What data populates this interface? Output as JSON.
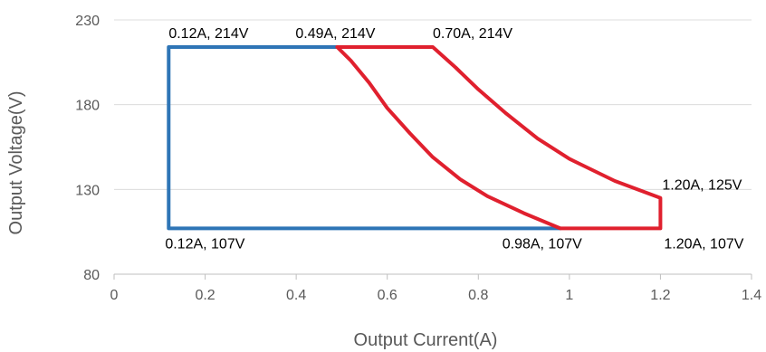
{
  "chart_data": {
    "type": "line",
    "xlabel": "Output Current(A)",
    "ylabel": "Output Voltage(V)",
    "xlim": [
      0,
      1.4
    ],
    "ylim": [
      80,
      230
    ],
    "xticks": [
      "0",
      "0.2",
      "0.4",
      "0.6",
      "0.8",
      "1",
      "1.2",
      "1.4"
    ],
    "yticks": [
      "80",
      "130",
      "180",
      "230"
    ],
    "grid": true,
    "series": [
      {
        "color": "#2e75b6",
        "points": [
          [
            0.98,
            107
          ],
          [
            0.12,
            107
          ],
          [
            0.12,
            214
          ],
          [
            0.49,
            214
          ]
        ]
      },
      {
        "color": "#e0202e",
        "points": [
          [
            0.49,
            214
          ],
          [
            0.52,
            206
          ],
          [
            0.56,
            193
          ],
          [
            0.6,
            178
          ],
          [
            0.65,
            163
          ],
          [
            0.7,
            149
          ],
          [
            0.76,
            136
          ],
          [
            0.82,
            126
          ],
          [
            0.9,
            116
          ],
          [
            0.98,
            107
          ],
          [
            1.2,
            107
          ],
          [
            1.2,
            125
          ],
          [
            1.1,
            135
          ],
          [
            1.0,
            148
          ],
          [
            0.93,
            160
          ],
          [
            0.86,
            175
          ],
          [
            0.8,
            189
          ],
          [
            0.75,
            202
          ],
          [
            0.7,
            214
          ],
          [
            0.49,
            214
          ]
        ]
      }
    ],
    "annotations": [
      {
        "text": "0.12A, 214V",
        "x": 0.12,
        "y": 214,
        "pos": "above-right"
      },
      {
        "text": "0.49A, 214V",
        "x": 0.49,
        "y": 214,
        "pos": "above-center"
      },
      {
        "text": "0.70A, 214V",
        "x": 0.7,
        "y": 214,
        "pos": "above-right"
      },
      {
        "text": "1.20A, 125V",
        "x": 1.2,
        "y": 125,
        "pos": "above-left"
      },
      {
        "text": "0.12A, 107V",
        "x": 0.12,
        "y": 107,
        "pos": "below-right"
      },
      {
        "text": "0.98A, 107V",
        "x": 0.98,
        "y": 107,
        "pos": "below-left"
      },
      {
        "text": "1.20A, 107V",
        "x": 1.2,
        "y": 107,
        "pos": "below-left"
      }
    ]
  }
}
